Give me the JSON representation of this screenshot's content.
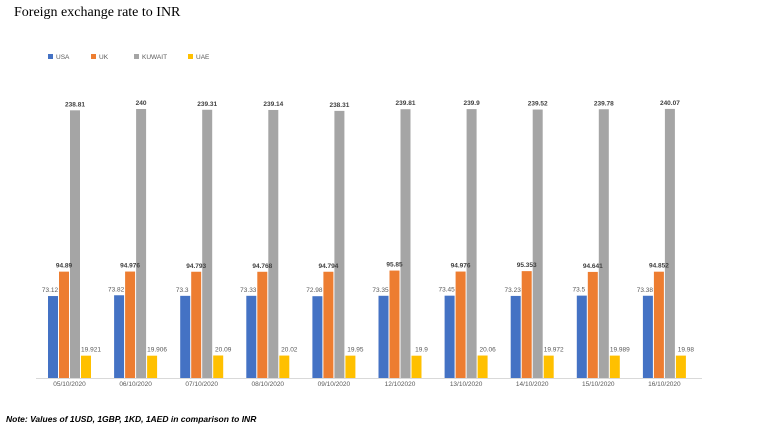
{
  "page": {
    "title": "Foreign exchange rate to INR",
    "note": "Note: Values of 1USD, 1GBP, 1KD, 1AED in comparison to INR"
  },
  "chart_data": {
    "type": "bar",
    "title": "Foreign exchange rate to INR",
    "xlabel": "",
    "ylabel": "",
    "ylim": [
      0,
      245
    ],
    "grid": false,
    "legend_position": "top-left",
    "categories": [
      "05/10/2020",
      "06/10/2020",
      "07/10/2020",
      "08/10/2020",
      "09/10/2020",
      "12/102020",
      "13/10/2020",
      "14/10/2020",
      "15/10/2020",
      "16/10/2020"
    ],
    "series": [
      {
        "name": "USA",
        "color": "#4472c4",
        "values": [
          73.12,
          73.82,
          73.3,
          73.33,
          72.98,
          73.35,
          73.45,
          73.23,
          73.5,
          73.38
        ],
        "labels": [
          "73.12",
          "73.82",
          "73.3",
          "73.33",
          "72.98",
          "73.35",
          "73.45",
          "73.23",
          "73.5",
          "73.38"
        ]
      },
      {
        "name": "UK",
        "color": "#ed7d31",
        "values": [
          94.89,
          94.976,
          94.793,
          94.768,
          94.794,
          95.85,
          94.976,
          95.353,
          94.641,
          94.852
        ],
        "labels": [
          "94.89",
          "94.976",
          "94.793",
          "94.768",
          "94.794",
          "95.85",
          "94.976",
          "95.353",
          "94.641",
          "94.852"
        ]
      },
      {
        "name": "KUWAIT",
        "color": "#a5a5a5",
        "values": [
          238.81,
          240,
          239.31,
          239.14,
          238.31,
          239.81,
          239.9,
          239.52,
          239.78,
          240.07
        ],
        "labels": [
          "238.81",
          "240",
          "239.31",
          "239.14",
          "238.31",
          "239.81",
          "239.9",
          "239.52",
          "239.78",
          "240.07"
        ]
      },
      {
        "name": "UAE",
        "color": "#ffc000",
        "values": [
          19.921,
          19.906,
          20.09,
          20.02,
          19.95,
          19.9,
          20.06,
          19.972,
          19.989,
          19.98
        ],
        "labels": [
          "19.921",
          "19.906",
          "20.09",
          "20.02",
          "19.95",
          "19.9",
          "20.06",
          "19.972",
          "19.989",
          "19.98"
        ]
      }
    ]
  }
}
